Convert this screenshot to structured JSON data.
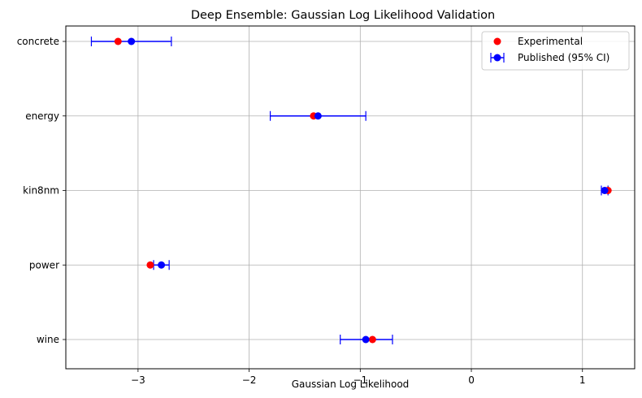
{
  "chart_data": {
    "type": "scatter",
    "title": "Deep Ensemble: Gaussian Log Likelihood Validation",
    "xlabel": "Gaussian Log Likelihood",
    "ylabel": "",
    "categories": [
      "concrete",
      "energy",
      "kin8nm",
      "power",
      "wine"
    ],
    "xlim": [
      -3.65,
      1.47
    ],
    "xticks": [
      -3,
      -2,
      -1,
      0,
      1
    ],
    "xtick_labels": [
      "−3",
      "−2",
      "−1",
      "0",
      "1"
    ],
    "grid": true,
    "legend_position": "top-right",
    "series": [
      {
        "name": "Experimental",
        "kind": "scatter",
        "color": "#ff0000",
        "values": [
          -3.18,
          -1.42,
          1.23,
          -2.89,
          -0.89
        ]
      },
      {
        "name": "Published (95% CI)",
        "kind": "errorbar",
        "color": "#0000ff",
        "values": [
          -3.06,
          -1.38,
          1.2,
          -2.79,
          -0.95
        ],
        "ci_low": [
          -3.42,
          -1.81,
          1.17,
          -2.86,
          -1.18
        ],
        "ci_high": [
          -2.7,
          -0.95,
          1.23,
          -2.72,
          -0.71
        ]
      }
    ]
  }
}
